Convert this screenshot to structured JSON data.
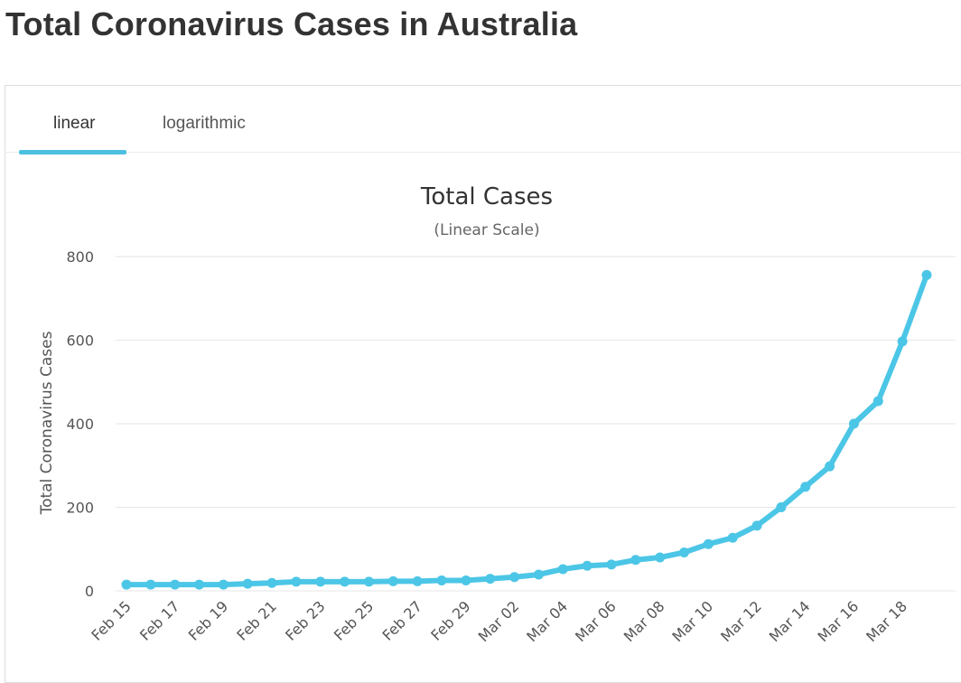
{
  "page": {
    "title": "Total Coronavirus Cases in Australia"
  },
  "tabs": [
    {
      "label": "linear",
      "active": true
    },
    {
      "label": "logarithmic",
      "active": false
    }
  ],
  "colors": {
    "line": "#4cc6e6",
    "grid": "#e6e6e6",
    "tab_underline": "#4cc0e0"
  },
  "chart_data": {
    "type": "line",
    "title": "Total Cases",
    "subtitle": "(Linear Scale)",
    "ylabel": "Total Coronavirus Cases",
    "xlabel": "",
    "ylim": [
      0,
      800
    ],
    "yticks": [
      0,
      200,
      400,
      600,
      800
    ],
    "grid": true,
    "xticks": [
      "Feb 15",
      "Feb 17",
      "Feb 19",
      "Feb 21",
      "Feb 23",
      "Feb 25",
      "Feb 27",
      "Feb 29",
      "Mar 02",
      "Mar 04",
      "Mar 06",
      "Mar 08",
      "Mar 10",
      "Mar 12",
      "Mar 14",
      "Mar 16",
      "Mar 18"
    ],
    "x": [
      "Feb 15",
      "Feb 16",
      "Feb 17",
      "Feb 18",
      "Feb 19",
      "Feb 20",
      "Feb 21",
      "Feb 22",
      "Feb 23",
      "Feb 24",
      "Feb 25",
      "Feb 26",
      "Feb 27",
      "Feb 28",
      "Feb 29",
      "Mar 01",
      "Mar 02",
      "Mar 03",
      "Mar 04",
      "Mar 05",
      "Mar 06",
      "Mar 07",
      "Mar 08",
      "Mar 09",
      "Mar 10",
      "Mar 11",
      "Mar 12",
      "Mar 13",
      "Mar 14",
      "Mar 15",
      "Mar 16",
      "Mar 17",
      "Mar 18",
      "Mar 19"
    ],
    "series": [
      {
        "values": [
          15,
          15,
          15,
          15,
          15,
          17,
          19,
          22,
          22,
          22,
          22,
          23,
          23,
          25,
          25,
          29,
          33,
          39,
          52,
          60,
          63,
          74,
          80,
          92,
          112,
          127,
          156,
          200,
          249,
          298,
          400,
          454,
          597,
          756
        ]
      }
    ]
  }
}
